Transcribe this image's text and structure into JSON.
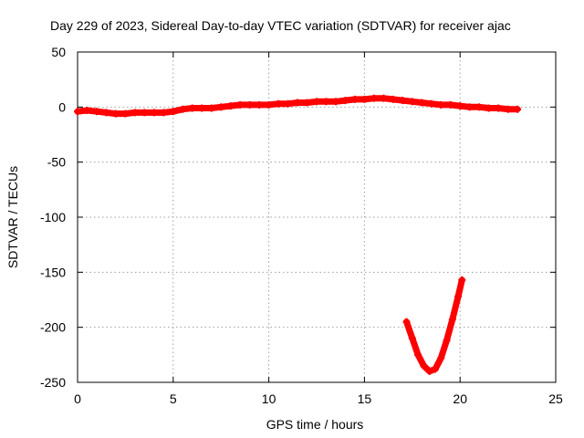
{
  "chart_data": {
    "type": "scatter",
    "title": "Day 229 of 2023, Sidereal Day-to-day VTEC variation (SDTVAR) for receiver ajac",
    "xlabel": "GPS time / hours",
    "ylabel": "SDTVAR / TECUs",
    "xlim": [
      0,
      25
    ],
    "ylim": [
      -250,
      50
    ],
    "xticks": [
      0,
      5,
      10,
      15,
      20,
      25
    ],
    "yticks": [
      50,
      0,
      -50,
      -100,
      -150,
      -200,
      -250
    ],
    "grid": true,
    "series_color": "#ff0000",
    "series": [
      {
        "points": [
          [
            0.0,
            -4
          ],
          [
            0.5,
            -3
          ],
          [
            1.0,
            -4
          ],
          [
            1.5,
            -5
          ],
          [
            2.0,
            -6
          ],
          [
            2.5,
            -6
          ],
          [
            3.0,
            -5
          ],
          [
            3.5,
            -5
          ],
          [
            4.0,
            -5
          ],
          [
            4.5,
            -5
          ],
          [
            5.0,
            -4
          ],
          [
            5.5,
            -2
          ],
          [
            6.0,
            -1
          ],
          [
            6.5,
            -1
          ],
          [
            7.0,
            -1
          ],
          [
            7.5,
            0
          ],
          [
            8.0,
            1
          ],
          [
            8.5,
            2
          ],
          [
            9.0,
            2
          ],
          [
            9.5,
            2
          ],
          [
            10.0,
            2
          ],
          [
            10.5,
            3
          ],
          [
            11.0,
            3
          ],
          [
            11.5,
            4
          ],
          [
            12.0,
            4
          ],
          [
            12.5,
            5
          ],
          [
            13.0,
            5
          ],
          [
            13.5,
            5
          ],
          [
            14.0,
            6
          ],
          [
            14.5,
            7
          ],
          [
            15.0,
            7
          ],
          [
            15.5,
            8
          ],
          [
            16.0,
            8
          ],
          [
            16.5,
            7
          ],
          [
            17.0,
            6
          ],
          [
            17.5,
            5
          ],
          [
            18.0,
            4
          ],
          [
            18.5,
            3
          ],
          [
            19.0,
            2
          ],
          [
            19.5,
            2
          ],
          [
            20.0,
            1
          ],
          [
            20.5,
            0
          ],
          [
            21.0,
            0
          ],
          [
            21.5,
            -1
          ],
          [
            22.0,
            -1
          ],
          [
            22.5,
            -2
          ],
          [
            23.0,
            -2
          ]
        ]
      },
      {
        "points": [
          [
            17.2,
            -195
          ],
          [
            17.5,
            -210
          ],
          [
            17.8,
            -225
          ],
          [
            18.1,
            -235
          ],
          [
            18.4,
            -240
          ],
          [
            18.7,
            -238
          ],
          [
            19.0,
            -228
          ],
          [
            19.3,
            -212
          ],
          [
            19.6,
            -193
          ],
          [
            19.9,
            -172
          ],
          [
            20.1,
            -157
          ]
        ]
      }
    ]
  }
}
